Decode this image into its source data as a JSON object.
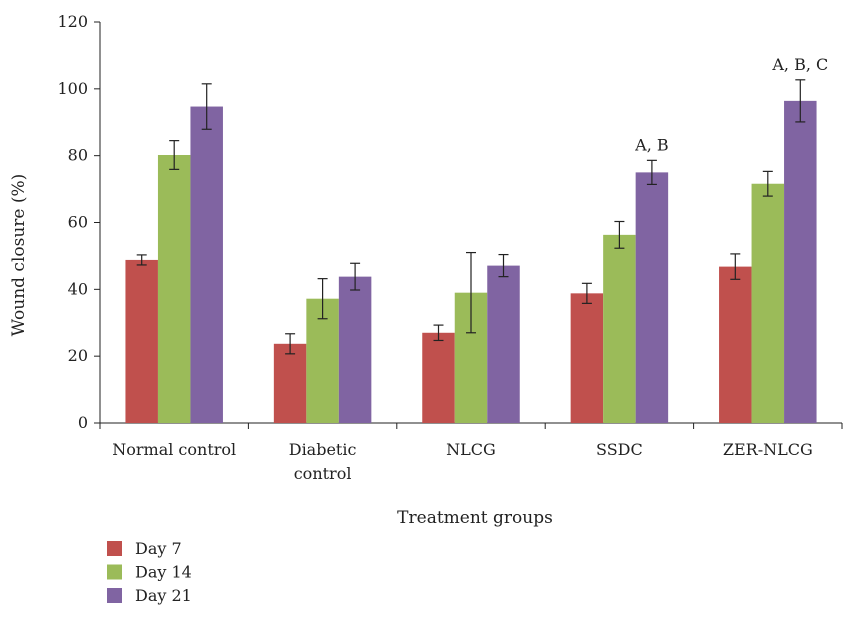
{
  "chart_data": {
    "type": "bar",
    "title": "",
    "xlabel": "Treatment groups",
    "ylabel": "Wound closure (%)",
    "ylim": [
      0,
      120
    ],
    "yticks": [
      0,
      20,
      40,
      60,
      80,
      100,
      120
    ],
    "categories": [
      [
        "Normal control"
      ],
      [
        "Diabetic",
        "control"
      ],
      [
        "NLCG"
      ],
      [
        "SSDC"
      ],
      [
        "ZER-NLCG"
      ]
    ],
    "series": [
      {
        "name": "Day 7",
        "color": "#c0504d",
        "values": [
          48.8,
          23.7,
          27.0,
          38.8,
          46.8
        ],
        "errors": [
          1.5,
          3.0,
          2.3,
          3.0,
          3.8
        ]
      },
      {
        "name": "Day 14",
        "color": "#9bbb59",
        "values": [
          80.2,
          37.2,
          39.0,
          56.3,
          71.6
        ],
        "errors": [
          4.3,
          6.0,
          12.0,
          4.0,
          3.7
        ]
      },
      {
        "name": "Day 21",
        "color": "#8064a2",
        "values": [
          94.7,
          43.8,
          47.1,
          75.0,
          96.4
        ],
        "errors": [
          6.8,
          4.0,
          3.3,
          3.6,
          6.3
        ]
      }
    ],
    "annotations": [
      {
        "category_index": 3,
        "series_index": 2,
        "text": "A, B"
      },
      {
        "category_index": 4,
        "series_index": 2,
        "text": "A, B, C"
      }
    ],
    "legend_position": "bottom-left"
  }
}
